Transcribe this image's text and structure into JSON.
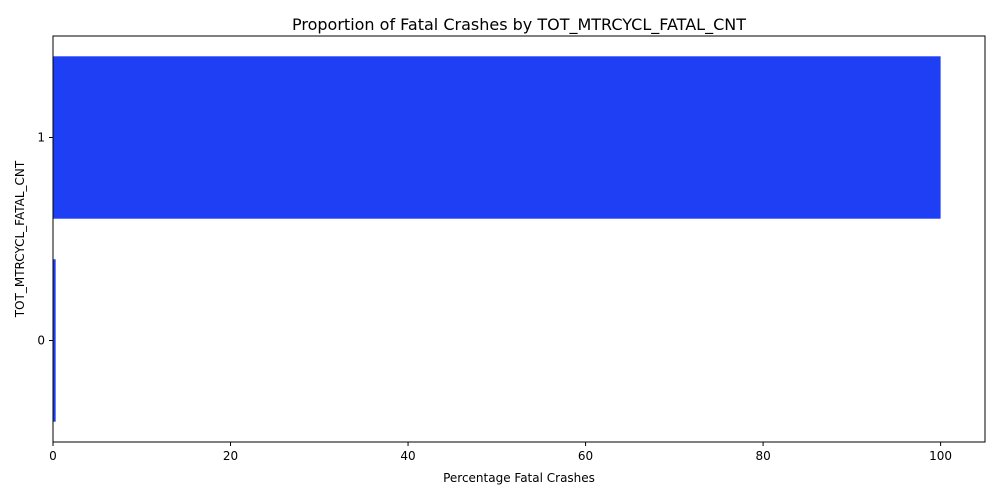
{
  "chart_data": {
    "type": "bar",
    "orientation": "horizontal",
    "title": "Proportion of Fatal Crashes by TOT_MTRCYCL_FATAL_CNT",
    "xlabel": "Percentage Fatal Crashes",
    "ylabel": "TOT_MTRCYCL_FATAL_CNT",
    "categories": [
      "0",
      "1"
    ],
    "values": [
      0.3,
      100
    ],
    "xlim": [
      0,
      105
    ],
    "xticks": [
      "0",
      "20",
      "40",
      "60",
      "80",
      "100"
    ],
    "grid": false,
    "legend": "none",
    "colors": {
      "bar": "#1f3ff5",
      "axis": "#000000",
      "background": "#ffffff"
    }
  }
}
